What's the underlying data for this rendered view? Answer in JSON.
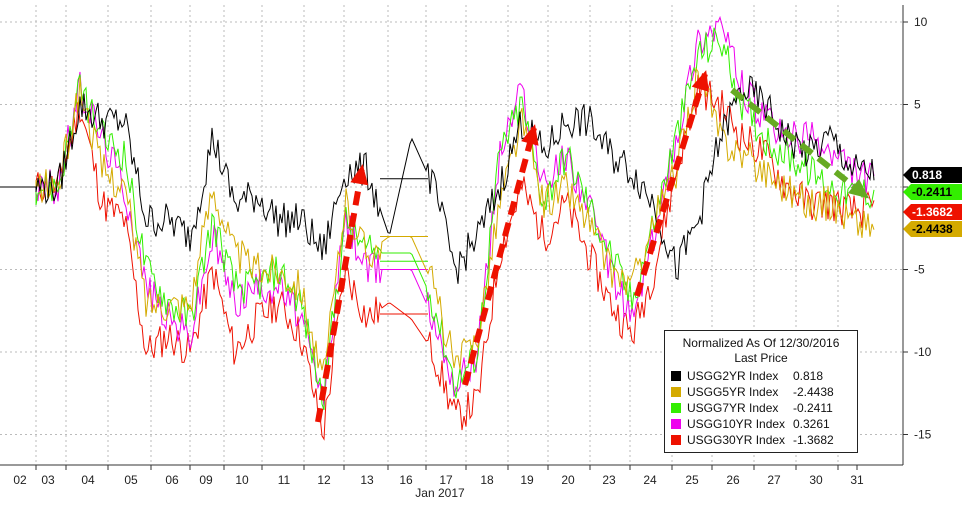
{
  "chart_data": {
    "type": "line",
    "xlabel": "Jan 2017",
    "x_ticks": [
      "02",
      "03",
      "04",
      "05",
      "06",
      "09",
      "10",
      "11",
      "12",
      "13",
      "16",
      "17",
      "18",
      "19",
      "20",
      "23",
      "24",
      "25",
      "26",
      "27",
      "30",
      "31"
    ],
    "y_ticks": [
      10,
      5,
      -5,
      -10,
      -15
    ],
    "ylim": [
      -17,
      11
    ],
    "grid": true,
    "legend": {
      "title": "Normalized As Of 12/30/2016",
      "subtitle": "Last Price",
      "placement": "bottom-right"
    },
    "series": [
      {
        "name": "USGG2YR Index",
        "last": "0.818",
        "color": "#000000",
        "values": [
          0,
          0,
          5,
          4,
          4,
          -2,
          -2,
          -3,
          3,
          -1,
          -0.5,
          -2,
          -2,
          -4,
          1,
          1,
          -3,
          3,
          0,
          -5,
          -3,
          0,
          4,
          2,
          4,
          4,
          2,
          1,
          -1,
          -5,
          -2,
          3,
          6,
          5,
          3,
          2,
          3,
          1,
          0.8
        ]
      },
      {
        "name": "USGG5YR Index",
        "last": "-2.4438",
        "color": "#d4aa00",
        "values": [
          0,
          0,
          6,
          1,
          0,
          -7,
          -7,
          -7,
          0,
          -4,
          -5,
          -5,
          -6,
          -12,
          -1,
          -4,
          -3,
          -3,
          -6,
          -11,
          -9,
          -1,
          4,
          -1,
          0,
          -2,
          -5,
          -6,
          -2,
          1,
          7,
          3,
          2,
          1,
          0,
          -1,
          -1,
          -2,
          -2.4438
        ]
      },
      {
        "name": "USGG7YR Index",
        "last": "-0.2411",
        "color": "#33ee00",
        "values": [
          0,
          0,
          6,
          3,
          2,
          -5,
          -7,
          -8,
          -2,
          -6,
          -6,
          -5,
          -7,
          -13,
          -2,
          -4,
          -4,
          -4,
          -7,
          -12,
          -10,
          2,
          5,
          -1,
          2,
          -1,
          -4,
          -7,
          -2,
          3,
          8,
          9,
          5,
          3,
          2,
          1,
          0,
          -0.5,
          -0.2411
        ]
      },
      {
        "name": "USGG10YR Index",
        "last": "0.3261",
        "color": "#ee00ee",
        "values": [
          0,
          0,
          6,
          3,
          0,
          -6,
          -8,
          -9,
          -3,
          -7,
          -6,
          -6,
          -8,
          -13,
          -2,
          -5,
          -5,
          -5,
          -8,
          -12,
          -10,
          2,
          6,
          0,
          2,
          -1,
          -5,
          -8,
          -3,
          3,
          9,
          10,
          6,
          4,
          3,
          3,
          2,
          1,
          0.3261
        ]
      },
      {
        "name": "USGG30YR Index",
        "last": "-1.3682",
        "color": "#ee1100",
        "values": [
          0,
          0,
          5,
          -1,
          -2,
          -10,
          -9,
          -10,
          -5,
          -10,
          -8,
          -7,
          -9,
          -15,
          -5,
          -8,
          -7,
          -8,
          -10,
          -14,
          -13,
          -4,
          0,
          -3,
          -1,
          -4,
          -7,
          -9,
          -5,
          1,
          6,
          5,
          3,
          2,
          0,
          -1,
          -1,
          -1.5,
          -1.3682
        ]
      }
    ]
  }
}
